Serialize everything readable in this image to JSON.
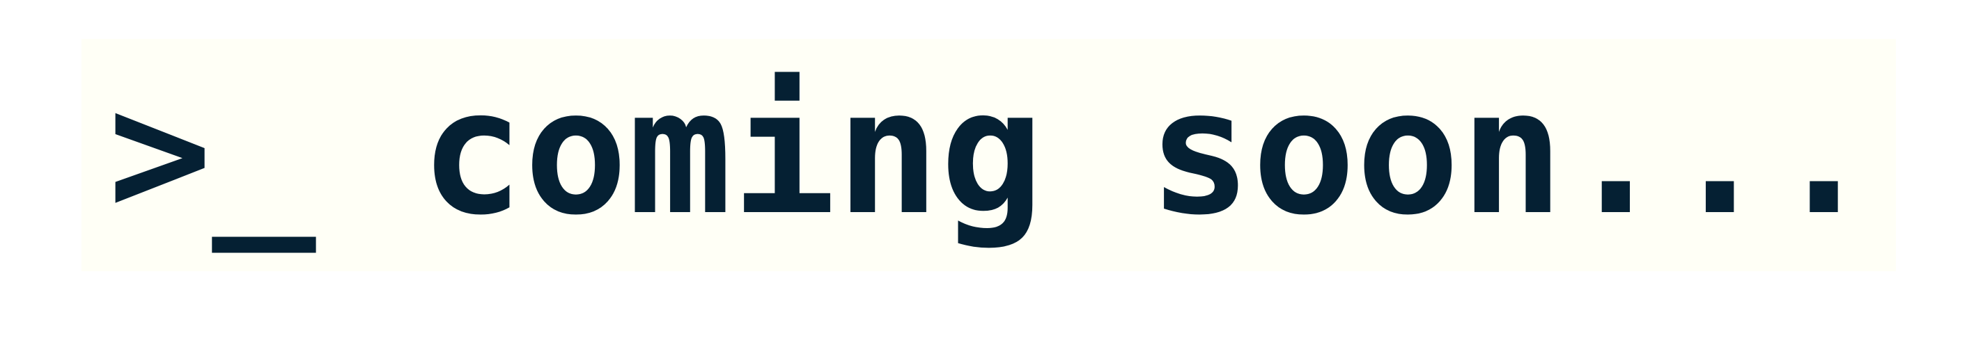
{
  "banner": {
    "prompt": ">_",
    "message": "coming soon..."
  },
  "colors": {
    "background": "#ffffff",
    "banner_background": "#fffff6",
    "text": "#052033"
  }
}
